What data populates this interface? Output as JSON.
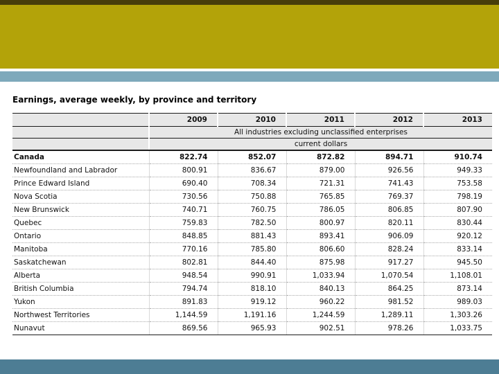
{
  "slide": {
    "colors": {
      "top_strip": "#473d0a",
      "header_band": "#b3a309",
      "accent_bar": "#7ea9bb",
      "footer_bar": "#4d7d94"
    }
  },
  "table": {
    "title": "Earnings, average weekly, by province and territory",
    "years": [
      "2009",
      "2010",
      "2011",
      "2012",
      "2013"
    ],
    "industry_note": "All industries excluding unclassified enterprises",
    "unit_note": "current dollars",
    "rows": [
      {
        "label": "Canada",
        "bold": true,
        "values": [
          "822.74",
          "852.07",
          "872.82",
          "894.71",
          "910.74"
        ]
      },
      {
        "label": "Newfoundland and Labrador",
        "bold": false,
        "values": [
          "800.91",
          "836.67",
          "879.00",
          "926.56",
          "949.33"
        ]
      },
      {
        "label": "Prince Edward Island",
        "bold": false,
        "values": [
          "690.40",
          "708.34",
          "721.31",
          "741.43",
          "753.58"
        ]
      },
      {
        "label": "Nova Scotia",
        "bold": false,
        "values": [
          "730.56",
          "750.88",
          "765.85",
          "769.37",
          "798.19"
        ]
      },
      {
        "label": "New Brunswick",
        "bold": false,
        "values": [
          "740.71",
          "760.75",
          "786.05",
          "806.85",
          "807.90"
        ]
      },
      {
        "label": "Quebec",
        "bold": false,
        "values": [
          "759.83",
          "782.50",
          "800.97",
          "820.11",
          "830.44"
        ]
      },
      {
        "label": "Ontario",
        "bold": false,
        "values": [
          "848.85",
          "881.43",
          "893.41",
          "906.09",
          "920.12"
        ]
      },
      {
        "label": "Manitoba",
        "bold": false,
        "values": [
          "770.16",
          "785.80",
          "806.60",
          "828.24",
          "833.14"
        ]
      },
      {
        "label": "Saskatchewan",
        "bold": false,
        "values": [
          "802.81",
          "844.40",
          "875.98",
          "917.27",
          "945.50"
        ]
      },
      {
        "label": "Alberta",
        "bold": false,
        "values": [
          "948.54",
          "990.91",
          "1,033.94",
          "1,070.54",
          "1,108.01"
        ]
      },
      {
        "label": "British Columbia",
        "bold": false,
        "values": [
          "794.74",
          "818.10",
          "840.13",
          "864.25",
          "873.14"
        ]
      },
      {
        "label": "Yukon",
        "bold": false,
        "values": [
          "891.83",
          "919.12",
          "960.22",
          "981.52",
          "989.03"
        ]
      },
      {
        "label": "Northwest Territories",
        "bold": false,
        "values": [
          "1,144.59",
          "1,191.16",
          "1,244.59",
          "1,289.11",
          "1,303.26"
        ]
      },
      {
        "label": "Nunavut",
        "bold": false,
        "values": [
          "869.56",
          "965.93",
          "902.51",
          "978.26",
          "1,033.75"
        ]
      }
    ]
  }
}
